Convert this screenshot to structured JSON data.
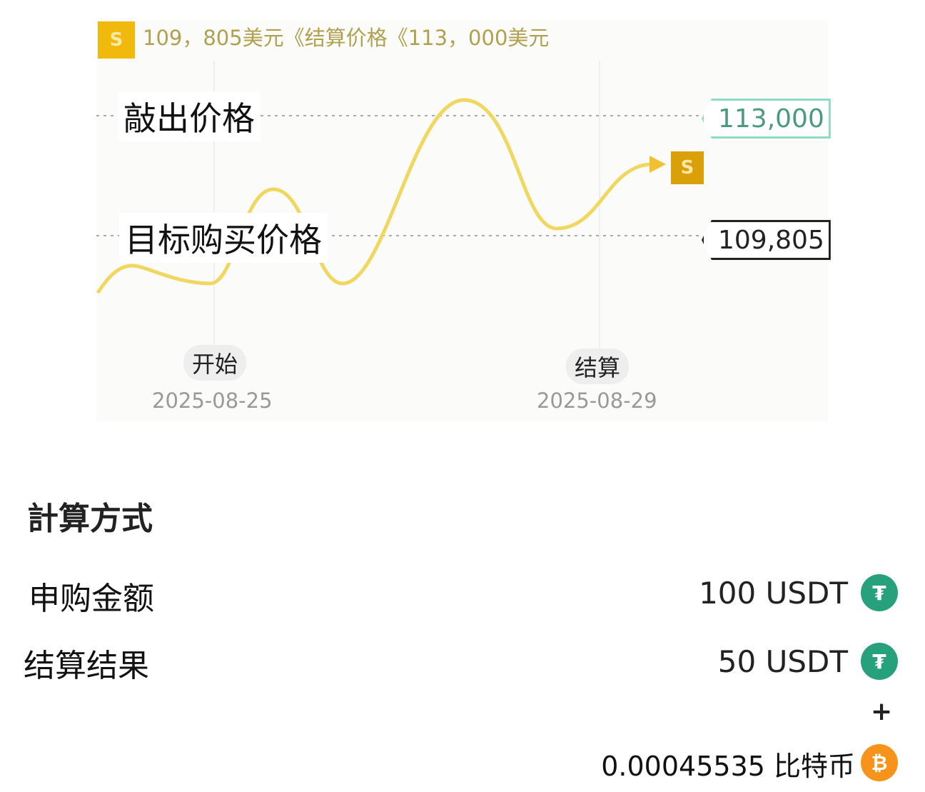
{
  "chart": {
    "header_badge": "S",
    "header_text": "109，805美元《结算价格《113，000美元",
    "knockout_label": "敲出价格",
    "target_label": "目标购买价格",
    "knockout_value": "113,000",
    "target_value": "109,805",
    "settle_marker": "S",
    "start_label": "开始",
    "start_date": "2025-08-25",
    "settle_label": "结算",
    "settle_date": "2025-08-29",
    "colors": {
      "line": "#f0d860",
      "knockout": "#5fc9a8",
      "badge": "#f0b90b",
      "marker": "#d9a00a"
    }
  },
  "calc": {
    "title": "計算方式",
    "rows": [
      {
        "label": "申购金额",
        "value": "100 USDT",
        "icon": "usdt-icon"
      },
      {
        "label": "结算结果",
        "value": "50 USDT",
        "icon": "usdt-icon"
      }
    ],
    "plus": "+",
    "btc_value": "0.00045535 比特币",
    "btc_icon": "bitcoin-icon"
  }
}
